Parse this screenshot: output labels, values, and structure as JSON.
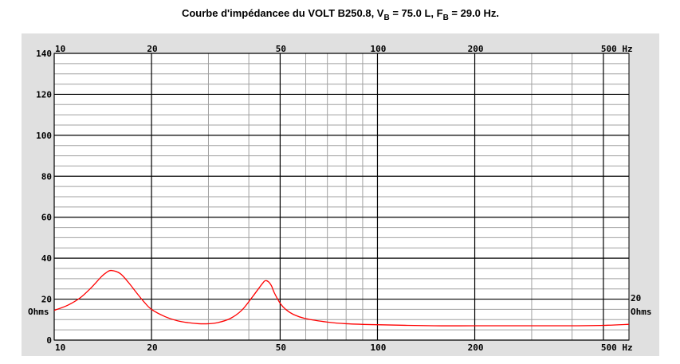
{
  "chart_data": {
    "type": "line",
    "title": {
      "prefix": "Courbe d'impédancee du VOLT B250.8, V",
      "vb_sub": "B",
      "vb_value": " = 75.0 L, F",
      "fb_sub": "B",
      "fb_value": " = 29.0 Hz."
    },
    "x_scale": "log",
    "xlim": [
      10,
      600
    ],
    "ylim": [
      0,
      140
    ],
    "x_tick_labels": [
      {
        "value": 10,
        "label": "10"
      },
      {
        "value": 20,
        "label": "20"
      },
      {
        "value": 50,
        "label": "50"
      },
      {
        "value": 100,
        "label": "100"
      },
      {
        "value": 200,
        "label": "200"
      },
      {
        "value": 500,
        "label": "500 Hz"
      }
    ],
    "y_ticks": [
      0,
      20,
      40,
      60,
      80,
      100,
      120,
      140
    ],
    "y_unit": "Ohms",
    "right_label": "20",
    "right_unit": "Ohms",
    "grid": true,
    "colors": {
      "curve": "#ff0000",
      "major_grid": "#000000",
      "minor_grid": "#a0a0a0",
      "background": "#ffffff",
      "frame_bg": "#e0e0e0"
    },
    "series": [
      {
        "x": [
          10,
          11,
          12,
          13,
          14,
          14.5,
          15,
          16,
          17,
          18,
          19,
          20,
          22,
          24,
          26,
          28,
          30,
          32,
          35,
          38,
          41,
          44,
          45,
          46,
          47,
          48,
          50,
          52,
          55,
          60,
          70,
          80,
          100,
          150,
          200,
          300,
          400,
          500,
          600
        ],
        "y": [
          14.5,
          17,
          20.5,
          25.5,
          31,
          33,
          34,
          32.5,
          28,
          23,
          18.5,
          15,
          11.5,
          9.5,
          8.5,
          8,
          8,
          8.5,
          10.5,
          14.5,
          21,
          27.5,
          29,
          28.5,
          26.5,
          23,
          18,
          15,
          12.5,
          10.5,
          8.8,
          8,
          7.5,
          7,
          7,
          7,
          7,
          7.2,
          7.7
        ]
      }
    ]
  }
}
